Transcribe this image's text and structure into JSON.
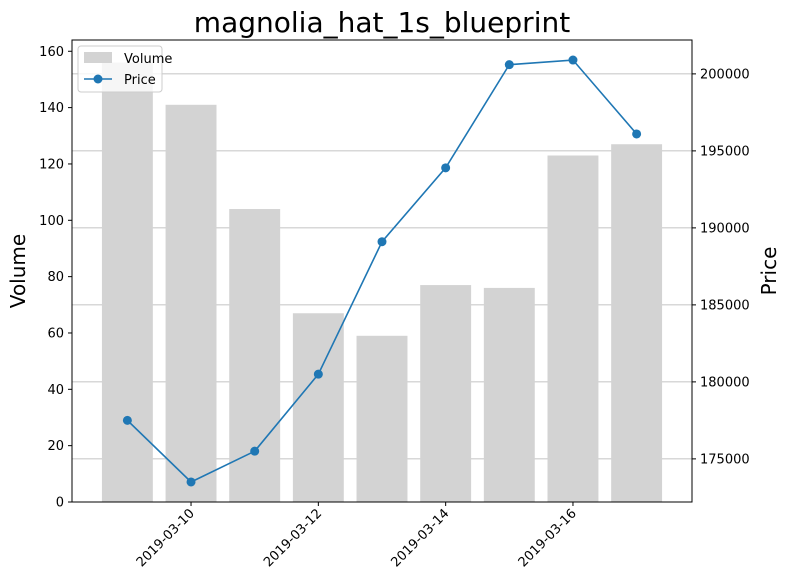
{
  "chart_data": {
    "type": "bar+line",
    "title": "magnolia_hat_1s_blueprint",
    "x": [
      "2019-03-09",
      "2019-03-10",
      "2019-03-11",
      "2019-03-12",
      "2019-03-13",
      "2019-03-14",
      "2019-03-15",
      "2019-03-16",
      "2019-03-17"
    ],
    "x_tick_labels": [
      "2019-03-10",
      "2019-03-12",
      "2019-03-14",
      "2019-03-16"
    ],
    "series": [
      {
        "name": "Volume",
        "type": "bar",
        "axis": "left",
        "color": "#d3d3d3",
        "values": [
          156,
          141,
          104,
          67,
          59,
          77,
          76,
          123,
          127
        ]
      },
      {
        "name": "Price",
        "type": "line",
        "axis": "right",
        "color": "#1f77b4",
        "values": [
          177500,
          173500,
          175500,
          180500,
          189100,
          193900,
          200600,
          200900,
          196100
        ]
      }
    ],
    "ylabel_left": "Volume",
    "ylabel_right": "Price",
    "ylim_left": [
      0,
      164
    ],
    "ylim_right": [
      172200,
      202200
    ],
    "yticks_left": [
      0,
      20,
      40,
      60,
      80,
      100,
      120,
      140,
      160
    ],
    "yticks_right": [
      175000,
      180000,
      185000,
      190000,
      195000,
      200000
    ],
    "grid": "horizontal, right axis",
    "legend": "top-left"
  }
}
